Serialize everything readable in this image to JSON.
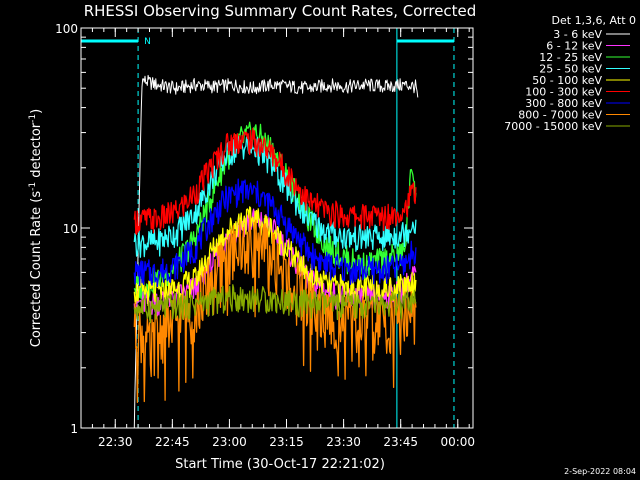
{
  "chart_data": {
    "type": "line",
    "title": "RHESSI Observing Summary Count Rates, Corrected",
    "xlabel": "Start Time (30-Oct-17 22:21:02)",
    "ylabel_main": "Corrected Count Rate (s",
    "ylabel_sup1": "-1",
    "ylabel_mid": " detector",
    "ylabel_sup2": "-1",
    "ylabel_end": ")",
    "yscale": "log",
    "ylim": [
      1,
      100
    ],
    "xlim": [
      "22:21",
      "00:04"
    ],
    "ytick_labels": [
      "1",
      "10",
      "100"
    ],
    "xticks": [
      {
        "label": "22:30",
        "t": 9
      },
      {
        "label": "22:45",
        "t": 24
      },
      {
        "label": "23:00",
        "t": 39
      },
      {
        "label": "23:15",
        "t": 54
      },
      {
        "label": "23:30",
        "t": 69
      },
      {
        "label": "23:45",
        "t": 84
      },
      {
        "label": "00:00",
        "t": 99
      }
    ],
    "legend_title": "Det 1,3,6, Att 0",
    "legend_position": "outside-right",
    "series": [
      {
        "name": "3 - 6 keV",
        "color": "#ffffff",
        "t": [
          14,
          16,
          20,
          25,
          30,
          35,
          40,
          45,
          50,
          55,
          60,
          65,
          70,
          75,
          80,
          85,
          88,
          88.5
        ],
        "values": [
          1,
          55,
          52,
          50,
          52,
          51,
          52,
          50,
          52,
          51,
          50,
          52,
          51,
          52,
          51,
          52,
          51,
          45
        ]
      },
      {
        "name": "6 - 12 keV",
        "color": "#ff33ff",
        "t": [
          14,
          20,
          25,
          30,
          34,
          38,
          42,
          46,
          50,
          55,
          60,
          65,
          70,
          75,
          80,
          85,
          88
        ],
        "values": [
          4.2,
          4.3,
          4.5,
          5.0,
          6.5,
          8.5,
          10.5,
          11,
          10,
          7.5,
          5.5,
          4.8,
          4.5,
          4.5,
          4.6,
          5.0,
          6.0
        ]
      },
      {
        "name": "12 - 25 keV",
        "color": "#33ff33",
        "t": [
          14,
          20,
          25,
          30,
          34,
          38,
          42,
          46,
          50,
          55,
          60,
          65,
          70,
          75,
          80,
          85,
          86,
          87,
          88
        ],
        "values": [
          5.0,
          5.5,
          6.5,
          9.0,
          14,
          22,
          28,
          30,
          25,
          17,
          11,
          8.0,
          7.0,
          6.5,
          7.0,
          7.5,
          13,
          21,
          15
        ]
      },
      {
        "name": "25 - 50 keV",
        "color": "#33ffff",
        "t": [
          14,
          20,
          25,
          30,
          34,
          38,
          42,
          46,
          50,
          55,
          60,
          65,
          70,
          75,
          80,
          85,
          88
        ],
        "values": [
          8.5,
          8.5,
          9.5,
          12,
          17,
          23,
          26,
          25,
          21,
          15,
          11,
          9.5,
          9.0,
          9.0,
          9.0,
          9.5,
          11
        ]
      },
      {
        "name": "50 - 100 keV",
        "color": "#ffff00",
        "t": [
          14,
          20,
          25,
          30,
          34,
          38,
          42,
          46,
          50,
          55,
          60,
          65,
          70,
          75,
          80,
          85,
          88
        ],
        "values": [
          4.8,
          4.8,
          5.0,
          5.5,
          7.5,
          9.5,
          11,
          11,
          10,
          7.5,
          5.8,
          5.2,
          5.0,
          5.0,
          5.0,
          5.2,
          5.5
        ]
      },
      {
        "name": "100 - 300 keV",
        "color": "#ff0000",
        "t": [
          14,
          20,
          25,
          30,
          34,
          38,
          42,
          46,
          50,
          55,
          60,
          65,
          70,
          75,
          80,
          85,
          88
        ],
        "values": [
          11,
          11,
          12,
          15,
          20,
          26,
          28,
          27,
          24,
          18,
          13.5,
          12,
          11.5,
          11.5,
          11.5,
          12.5,
          16
        ]
      },
      {
        "name": "300 - 800 keV",
        "color": "#0000ff",
        "t": [
          14,
          20,
          25,
          30,
          34,
          38,
          42,
          46,
          50,
          55,
          60,
          65,
          70,
          75,
          80,
          85,
          88
        ],
        "values": [
          6.0,
          6.0,
          6.5,
          8.0,
          11,
          14,
          15.5,
          15,
          13,
          10,
          7.5,
          6.5,
          6.2,
          6.2,
          6.2,
          6.6,
          8.0
        ]
      },
      {
        "name": "800 - 7000 keV",
        "color": "#ff8800",
        "t": [
          14,
          16,
          18,
          20,
          25,
          30,
          34,
          38,
          42,
          46,
          50,
          55,
          60,
          65,
          70,
          75,
          80,
          85,
          88
        ],
        "values": [
          3.2,
          3.0,
          2.5,
          3.0,
          3.5,
          4.0,
          5.5,
          7.0,
          8.5,
          8.5,
          7.5,
          5.5,
          4.2,
          3.6,
          3.4,
          3.4,
          3.5,
          3.8,
          4.0
        ]
      },
      {
        "name": "7000 - 15000 keV",
        "color": "#88aa00",
        "t": [
          14,
          20,
          25,
          30,
          40,
          50,
          60,
          70,
          80,
          88
        ],
        "values": [
          4.0,
          4.0,
          4.1,
          4.2,
          4.5,
          4.4,
          4.2,
          4.1,
          4.1,
          4.2
        ]
      }
    ],
    "annotations": {
      "footer": "2-Sep-2022 08:04",
      "night_marker": "N",
      "night_segments": [
        [
          0,
          15
        ],
        [
          83,
          98
        ]
      ],
      "marker_color": "#00ffff",
      "solid_lines_t": [
        0,
        83
      ],
      "dashed_lines_t": [
        15,
        98
      ]
    }
  }
}
